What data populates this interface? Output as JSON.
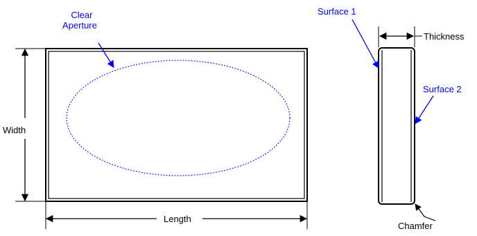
{
  "colors": {
    "callout": "#0000ff",
    "outline": "#000000",
    "aperture": "#3333ff",
    "background": "#ffffff"
  },
  "labels": {
    "clear_aperture_line1": "Clear",
    "clear_aperture_line2": "Aperture",
    "surface1": "Surface 1",
    "surface2": "Surface 2",
    "thickness": "Thickness",
    "width": "Width",
    "length": "Length",
    "chamfer": "Chamfer"
  }
}
